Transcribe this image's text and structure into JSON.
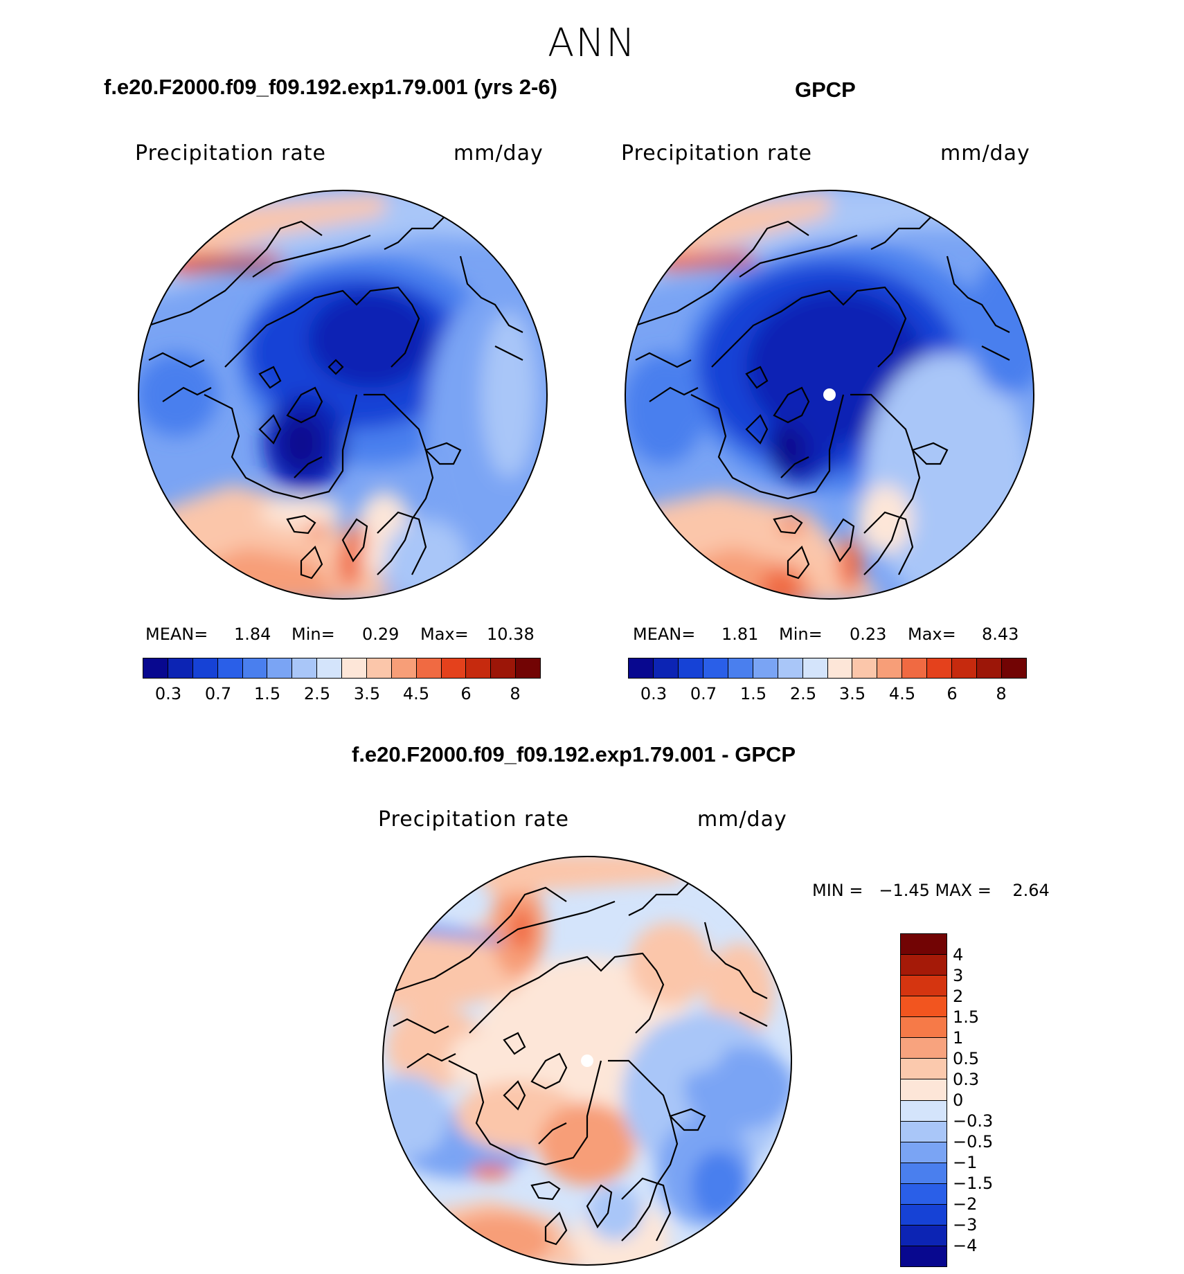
{
  "main_title": "ANN",
  "panels": [
    {
      "title": "f.e20.F2000.f09_f09.192.exp1.79.001 (yrs 2-6)",
      "var_label": "Precipitation rate",
      "units": "mm/day",
      "stats": {
        "mean_label": "MEAN=",
        "mean": "1.84",
        "min_label": "Min=",
        "min": "0.29",
        "max_label": "Max=",
        "max": "10.38"
      },
      "ticks": [
        "0.3",
        "0.7",
        "1.5",
        "2.5",
        "3.5",
        "4.5",
        "6",
        "8"
      ]
    },
    {
      "title": "GPCP",
      "var_label": "Precipitation rate",
      "units": "mm/day",
      "stats": {
        "mean_label": "MEAN=",
        "mean": "1.81",
        "min_label": "Min=",
        "min": "0.23",
        "max_label": "Max=",
        "max": "8.43"
      },
      "ticks": [
        "0.3",
        "0.7",
        "1.5",
        "2.5",
        "3.5",
        "4.5",
        "6",
        "8"
      ]
    }
  ],
  "diff_panel": {
    "title": "f.e20.F2000.f09_f09.192.exp1.79.001 - GPCP",
    "var_label": "Precipitation rate",
    "units": "mm/day",
    "minmax": "MIN =   −1.45 MAX =    2.64",
    "ticks": [
      "4",
      "3",
      "2",
      "1.5",
      "1",
      "0.5",
      "0.3",
      "0",
      "−0.3",
      "−0.5",
      "−1",
      "−1.5",
      "−2",
      "−3",
      "−4"
    ]
  },
  "colors": {
    "abs_scale": [
      "#08088f",
      "#0c24b4",
      "#1642d6",
      "#2a5fe8",
      "#4a7fee",
      "#7aa4f4",
      "#a9c6f8",
      "#d4e4fb",
      "#fde6d8",
      "#fbc6aa",
      "#f79e78",
      "#f06a42",
      "#e4411c",
      "#c62a0e",
      "#9c1608",
      "#720404"
    ],
    "diff_scale": [
      "#720404",
      "#a51a08",
      "#d53510",
      "#f2551f",
      "#f67a48",
      "#f8a37e",
      "#fbc9ad",
      "#fde6d8",
      "#d4e4fb",
      "#a9c6f8",
      "#7aa4f4",
      "#4a7fee",
      "#2a5fe8",
      "#1642d6",
      "#0c24b4",
      "#08088f"
    ]
  }
}
